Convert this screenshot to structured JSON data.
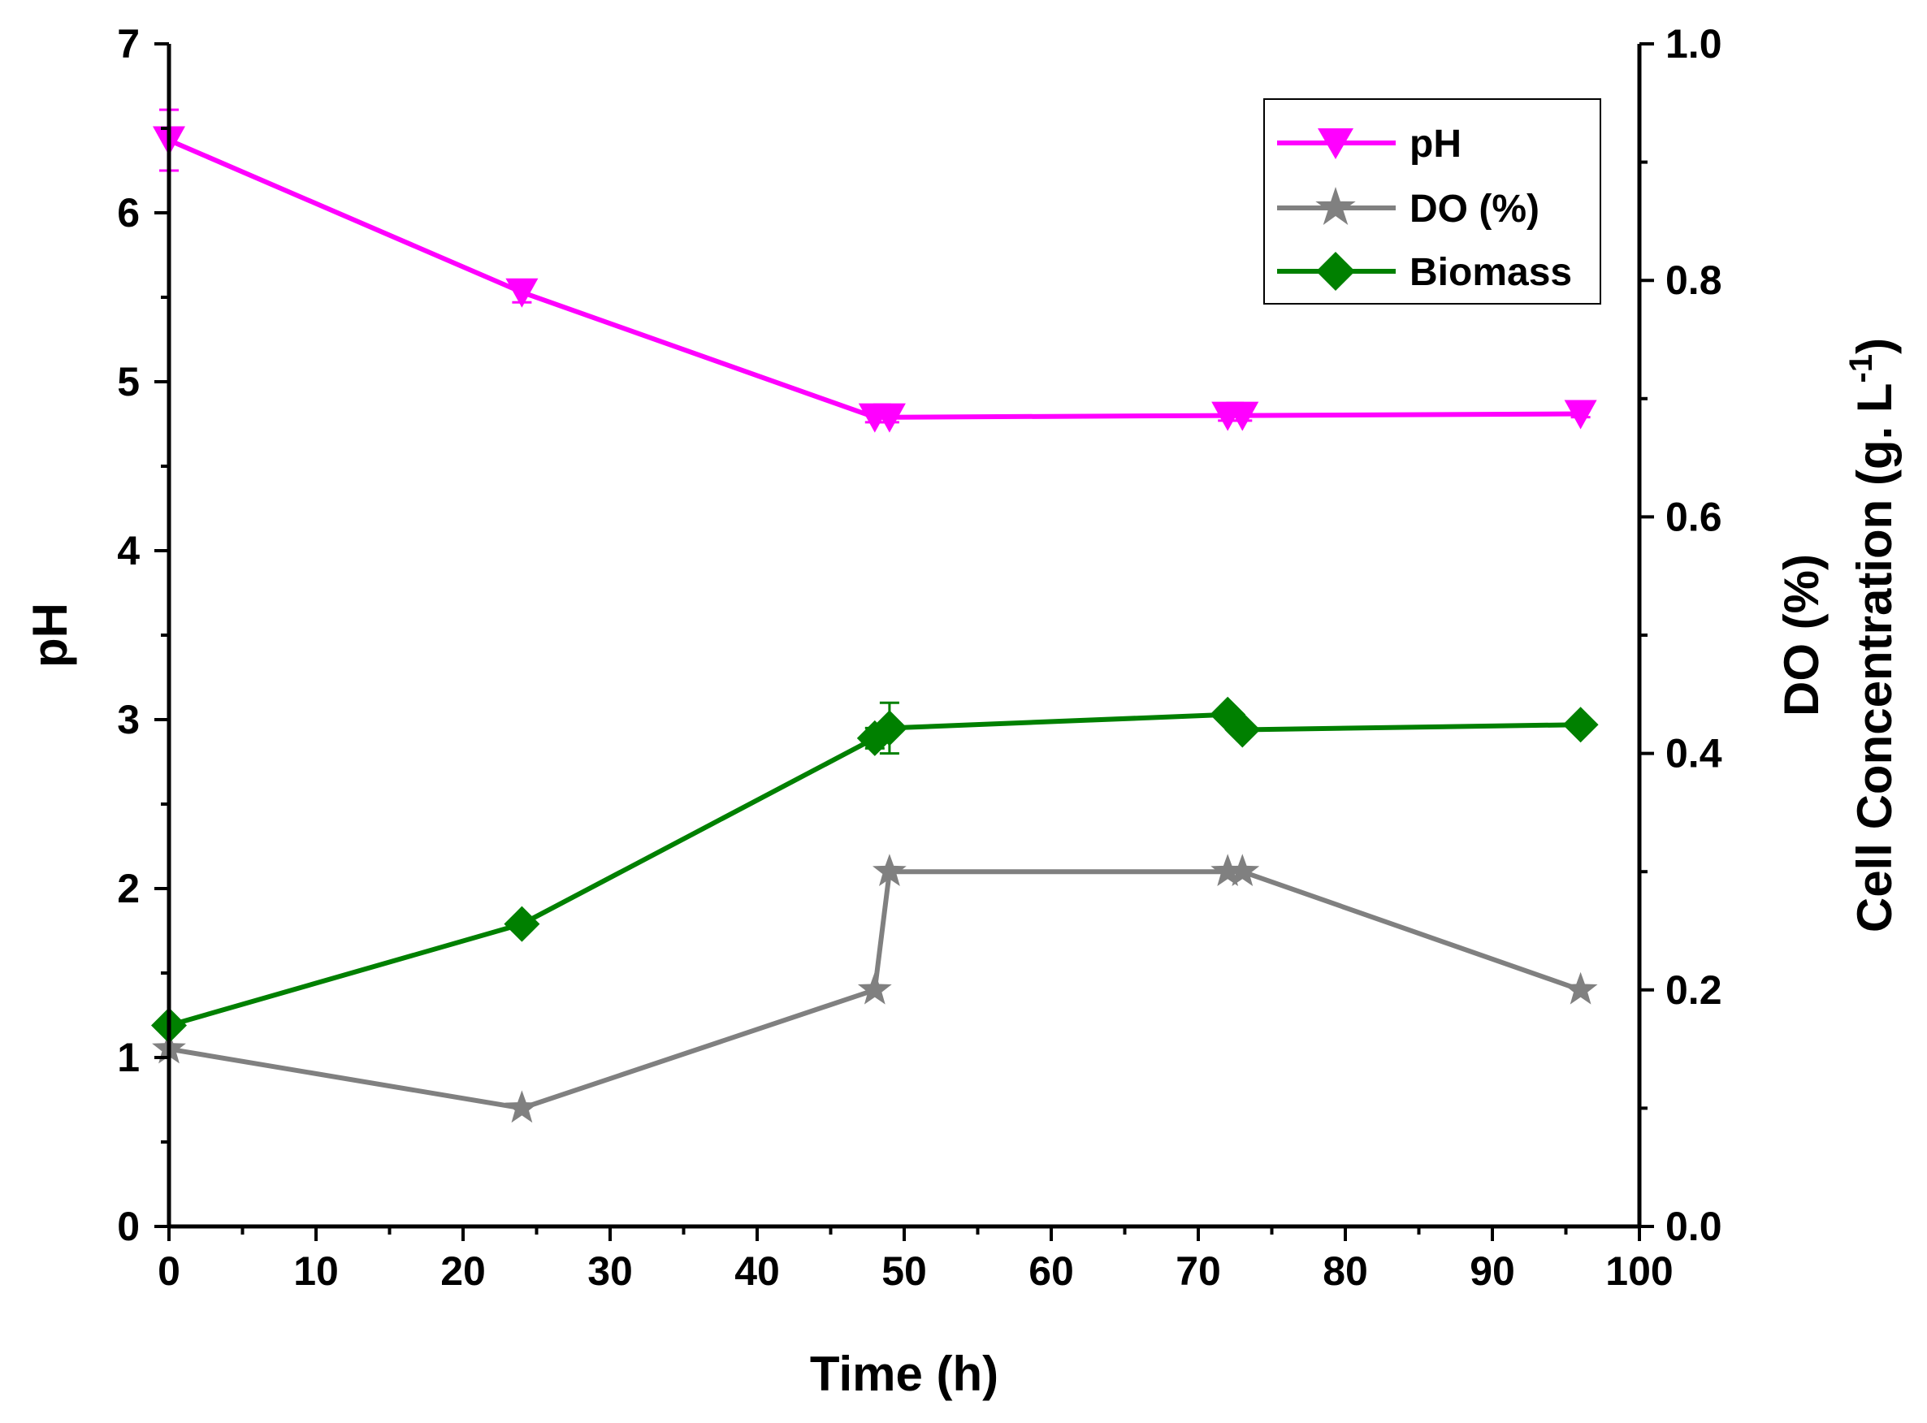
{
  "chart_data": {
    "type": "line",
    "title": "",
    "xlabel": "Time (h)",
    "ylabel_left": "pH",
    "ylabel_right_lines": [
      "DO (%)",
      "Cell Concentration (g. L",
      "-1",
      ")"
    ],
    "xlim": [
      0,
      100
    ],
    "xticks": [
      "0",
      "10",
      "20",
      "30",
      "40",
      "50",
      "60",
      "70",
      "80",
      "90",
      "100"
    ],
    "ylim_left": [
      0,
      7
    ],
    "yticks_left": [
      "0",
      "1",
      "2",
      "3",
      "4",
      "5",
      "6",
      "7"
    ],
    "ylim_right": [
      0,
      1
    ],
    "yticks_right": [
      "0.0",
      "0.2",
      "0.4",
      "0.6",
      "0.8",
      "1.0"
    ],
    "grid": false,
    "legend_position": "top-right",
    "series": [
      {
        "name": "pH",
        "color": "#ff00ff",
        "marker": "triangle-down",
        "axis": "left",
        "x": [
          0,
          24,
          48,
          49,
          72,
          73,
          96
        ],
        "y": [
          6.43,
          5.53,
          4.79,
          4.79,
          4.8,
          4.8,
          4.81
        ],
        "err": [
          0.18,
          0.06,
          0.03,
          0.03,
          0.03,
          0.03,
          0.02
        ]
      },
      {
        "name": "DO (%)",
        "color": "#808080",
        "marker": "star",
        "axis": "right",
        "x": [
          0,
          24,
          48,
          49,
          72,
          73,
          96
        ],
        "y": [
          0.15,
          0.1,
          0.2,
          0.3,
          0.3,
          0.3,
          0.2
        ],
        "err": [
          0,
          0,
          0,
          0,
          0,
          0,
          0
        ]
      },
      {
        "name": "Biomass",
        "color": "#008000",
        "marker": "diamond",
        "axis": "left",
        "x": [
          0,
          24,
          48,
          49,
          72,
          73,
          96
        ],
        "y": [
          1.19,
          1.79,
          2.89,
          2.95,
          3.03,
          2.94,
          2.97
        ],
        "err": [
          0.04,
          0.04,
          0.06,
          0.15,
          0.04,
          0.03,
          0.02
        ]
      }
    ]
  }
}
